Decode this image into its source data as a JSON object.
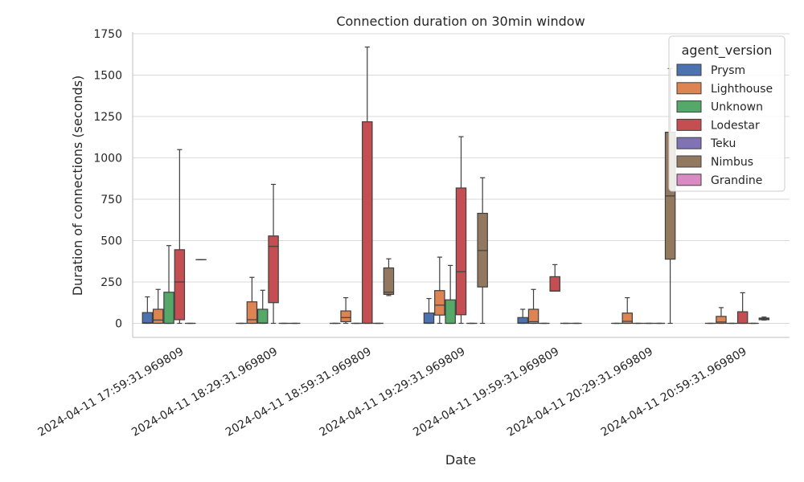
{
  "chart_data": {
    "type": "box",
    "title": "Connection duration on 30min window",
    "xlabel": "Date",
    "ylabel": "Duration of connections (seconds)",
    "ylim": [
      -85,
      1760
    ],
    "yticks": [
      0,
      250,
      500,
      750,
      1000,
      1250,
      1500,
      1750
    ],
    "grid": true,
    "legend": {
      "title": "agent_version",
      "position": "top-right"
    },
    "categories": [
      "2024-04-11 17:59:31.969809",
      "2024-04-11 18:29:31.969809",
      "2024-04-11 18:59:31.969809",
      "2024-04-11 19:29:31.969809",
      "2024-04-11 19:59:31.969809",
      "2024-04-11 20:29:31.969809",
      "2024-04-11 20:59:31.969809"
    ],
    "series": [
      {
        "name": "Prysm",
        "color": "#4c72b0",
        "boxes": [
          {
            "whislo": 0,
            "q1": 0,
            "med": 3,
            "q3": 65,
            "whishi": 160
          },
          {
            "whislo": 0,
            "q1": 0,
            "med": 0,
            "q3": 0,
            "whishi": 0
          },
          {
            "whislo": 0,
            "q1": 0,
            "med": 0,
            "q3": 0,
            "whishi": 0
          },
          {
            "whislo": 0,
            "q1": 0,
            "med": 2,
            "q3": 62,
            "whishi": 150
          },
          {
            "whislo": 0,
            "q1": 0,
            "med": 2,
            "q3": 35,
            "whishi": 85
          },
          {
            "whislo": 0,
            "q1": 0,
            "med": 0,
            "q3": 0,
            "whishi": 0
          },
          {
            "whislo": 0,
            "q1": 0,
            "med": 0,
            "q3": 0,
            "whishi": 0
          }
        ]
      },
      {
        "name": "Lighthouse",
        "color": "#dd8452",
        "boxes": [
          {
            "whislo": 0,
            "q1": 0,
            "med": 20,
            "q3": 85,
            "whishi": 205
          },
          {
            "whislo": 0,
            "q1": 0,
            "med": 22,
            "q3": 130,
            "whishi": 278
          },
          {
            "whislo": 0,
            "q1": 10,
            "med": 35,
            "q3": 75,
            "whishi": 155
          },
          {
            "whislo": 0,
            "q1": 50,
            "med": 110,
            "q3": 198,
            "whishi": 400
          },
          {
            "whislo": 0,
            "q1": 0,
            "med": 10,
            "q3": 85,
            "whishi": 205
          },
          {
            "whislo": 0,
            "q1": 0,
            "med": 12,
            "q3": 62,
            "whishi": 155
          },
          {
            "whislo": 0,
            "q1": 0,
            "med": 8,
            "q3": 42,
            "whishi": 95
          }
        ]
      },
      {
        "name": "Unknown",
        "color": "#55a868",
        "boxes": [
          {
            "whislo": 0,
            "q1": 0,
            "med": 0,
            "q3": 188,
            "whishi": 470
          },
          {
            "whislo": 0,
            "q1": 0,
            "med": 2,
            "q3": 85,
            "whishi": 200
          },
          {
            "whislo": 0,
            "q1": 0,
            "med": 0,
            "q3": 0,
            "whishi": 0
          },
          {
            "whislo": 0,
            "q1": 0,
            "med": 0,
            "q3": 142,
            "whishi": 350
          },
          {
            "whislo": 0,
            "q1": 0,
            "med": 0,
            "q3": 0,
            "whishi": 0
          },
          {
            "whislo": 0,
            "q1": 0,
            "med": 0,
            "q3": 0,
            "whishi": 0
          },
          {
            "whislo": 0,
            "q1": 0,
            "med": 0,
            "q3": 0,
            "whishi": 0
          }
        ]
      },
      {
        "name": "Lodestar",
        "color": "#c44e52",
        "boxes": [
          {
            "whislo": 0,
            "q1": 22,
            "med": 250,
            "q3": 445,
            "whishi": 1050
          },
          {
            "whislo": 0,
            "q1": 125,
            "med": 465,
            "q3": 528,
            "whishi": 840
          },
          {
            "whislo": 0,
            "q1": 0,
            "med": 0,
            "q3": 1218,
            "whishi": 1670
          },
          {
            "whislo": 0,
            "q1": 52,
            "med": 312,
            "q3": 818,
            "whishi": 1128
          },
          {
            "whislo": 195,
            "q1": 195,
            "med": 195,
            "q3": 282,
            "whishi": 355
          },
          {
            "whislo": 0,
            "q1": 0,
            "med": 0,
            "q3": 0,
            "whishi": 0
          },
          {
            "whislo": 0,
            "q1": 0,
            "med": 0,
            "q3": 70,
            "whishi": 185
          }
        ]
      },
      {
        "name": "Teku",
        "color": "#8172b3",
        "boxes": [
          {
            "whislo": 0,
            "q1": 0,
            "med": 0,
            "q3": 0,
            "whishi": 0
          },
          {
            "whislo": 0,
            "q1": 0,
            "med": 0,
            "q3": 0,
            "whishi": 0
          },
          {
            "whislo": 0,
            "q1": 0,
            "med": 0,
            "q3": 0,
            "whishi": 0
          },
          {
            "whislo": 0,
            "q1": 0,
            "med": 0,
            "q3": 0,
            "whishi": 0
          },
          {
            "whislo": 0,
            "q1": 0,
            "med": 0,
            "q3": 0,
            "whishi": 0
          },
          {
            "whislo": 0,
            "q1": 0,
            "med": 0,
            "q3": 0,
            "whishi": 0
          },
          {
            "whislo": 0,
            "q1": 0,
            "med": 0,
            "q3": 0,
            "whishi": 0
          }
        ]
      },
      {
        "name": "Nimbus",
        "color": "#937860",
        "boxes": [
          {
            "whislo": 385,
            "q1": 385,
            "med": 385,
            "q3": 385,
            "whishi": 385
          },
          {
            "whislo": 0,
            "q1": 0,
            "med": 0,
            "q3": 0,
            "whishi": 0
          },
          {
            "whislo": 168,
            "q1": 175,
            "med": 188,
            "q3": 335,
            "whishi": 390
          },
          {
            "whislo": 0,
            "q1": 220,
            "med": 440,
            "q3": 665,
            "whishi": 880
          },
          {
            "whislo": 0,
            "q1": 0,
            "med": 0,
            "q3": 0,
            "whishi": 0
          },
          {
            "whislo": 0,
            "q1": 388,
            "med": 770,
            "q3": 1155,
            "whishi": 1540
          },
          {
            "whislo": 20,
            "q1": 22,
            "med": 28,
            "q3": 32,
            "whishi": 38
          }
        ]
      },
      {
        "name": "Grandine",
        "color": "#da8bc3",
        "boxes": []
      }
    ]
  }
}
